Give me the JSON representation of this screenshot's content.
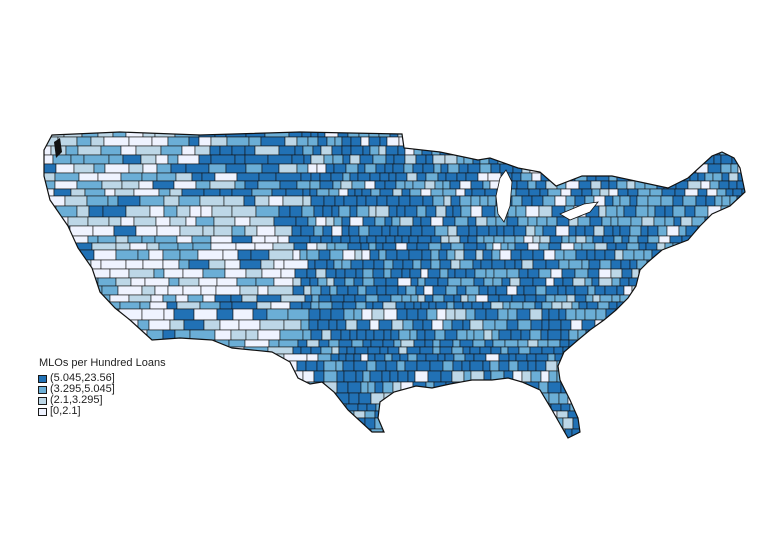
{
  "map": {
    "kind": "choropleth",
    "region": "contiguous United States (counties)",
    "border_color": "#111111",
    "background_color": "#ffffff"
  },
  "legend": {
    "title": "MLOs per Hundred Loans",
    "placement": "bottom-left",
    "items": [
      {
        "label": "(5.045,23.56]",
        "color": "#2171b5"
      },
      {
        "label": "(3.295,5.045]",
        "color": "#6baed6"
      },
      {
        "label": "(2.1,3.295]",
        "color": "#bdd7e7"
      },
      {
        "label": "[0,2.1]",
        "color": "#eff3ff"
      }
    ]
  }
}
